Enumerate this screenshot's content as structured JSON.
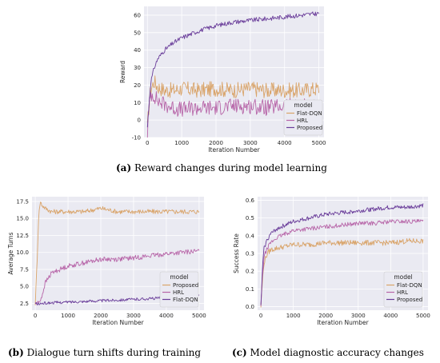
{
  "captions": [
    {
      "label": "(a)",
      "text": " Reward changes during model learning"
    },
    {
      "label": "(b)",
      "text": " Dialogue turn shifts during training"
    },
    {
      "label": "(c)",
      "text": " Model diagnostic accuracy changes"
    }
  ],
  "chart_data": [
    {
      "type": "line",
      "title": "",
      "xlabel": "Iteration Number",
      "ylabel": "Reward",
      "xlim": [
        -100,
        5150
      ],
      "ylim": [
        -10,
        65
      ],
      "xticks": [
        0,
        1000,
        2000,
        3000,
        4000,
        5000
      ],
      "yticks": [
        -10,
        0,
        10,
        20,
        30,
        40,
        50,
        60
      ],
      "grid": true,
      "legend_title": "model",
      "legend_position": "lower-right",
      "series": [
        {
          "name": "Flat-DQN",
          "color": "#d9a46a",
          "x": [
            0,
            50,
            100,
            200,
            300,
            500,
            750,
            1000,
            1500,
            2000,
            2500,
            3000,
            3500,
            4000,
            4500,
            5000
          ],
          "y": [
            -5,
            10,
            18,
            22,
            19,
            17,
            17,
            18,
            17,
            18,
            17,
            18,
            17,
            17,
            17,
            18
          ]
        },
        {
          "name": "HRL",
          "color": "#b765a8",
          "x": [
            0,
            50,
            100,
            200,
            300,
            500,
            750,
            1000,
            1500,
            2000,
            2500,
            3000,
            3500,
            4000,
            4500,
            5000
          ],
          "y": [
            -7,
            8,
            15,
            14,
            11,
            9,
            7,
            6,
            7,
            7,
            8,
            8,
            7,
            8,
            8,
            8
          ]
        },
        {
          "name": "Proposed",
          "color": "#6a3d9a",
          "x": [
            0,
            50,
            100,
            200,
            300,
            500,
            750,
            1000,
            1500,
            2000,
            2500,
            3000,
            3500,
            4000,
            4500,
            5000
          ],
          "y": [
            -4,
            10,
            22,
            30,
            35,
            40,
            44,
            47,
            51,
            54,
            56,
            57,
            58,
            59,
            60,
            61
          ]
        }
      ]
    },
    {
      "type": "line",
      "title": "",
      "xlabel": "Iteration Number",
      "ylabel": "Average Turns",
      "xlim": [
        -100,
        5150
      ],
      "ylim": [
        1.5,
        18.2
      ],
      "xticks": [
        0,
        1000,
        2000,
        3000,
        4000,
        5000
      ],
      "yticks": [
        2.5,
        5.0,
        7.5,
        10.0,
        12.5,
        15.0,
        17.5
      ],
      "grid": true,
      "legend_title": "model",
      "legend_position": "lower-right",
      "series": [
        {
          "name": "Proposed",
          "color": "#d9a46a",
          "x": [
            0,
            50,
            100,
            150,
            200,
            300,
            500,
            1000,
            1500,
            2000,
            2500,
            3000,
            3500,
            4000,
            4500,
            5000
          ],
          "y": [
            2.5,
            8,
            15,
            17.5,
            17,
            16.5,
            16,
            16,
            16,
            16.5,
            16,
            16,
            16,
            16,
            16,
            16
          ]
        },
        {
          "name": "HRL",
          "color": "#b765a8",
          "x": [
            0,
            100,
            200,
            300,
            500,
            750,
            1000,
            1500,
            2000,
            2500,
            3000,
            3500,
            4000,
            4500,
            5000
          ],
          "y": [
            2.5,
            2.6,
            3.5,
            5.5,
            7.0,
            7.5,
            8.0,
            8.5,
            9.0,
            9.0,
            9.2,
            9.5,
            9.8,
            10.0,
            10.2
          ]
        },
        {
          "name": "Flat-DQN",
          "color": "#6a3d9a",
          "x": [
            0,
            100,
            200,
            500,
            1000,
            1500,
            2000,
            2500,
            3000,
            3500,
            4000,
            4500,
            5000
          ],
          "y": [
            2.5,
            2.4,
            2.5,
            2.6,
            2.7,
            2.8,
            2.9,
            3.0,
            3.1,
            3.2,
            3.4,
            3.5,
            3.7
          ]
        }
      ]
    },
    {
      "type": "line",
      "title": "",
      "xlabel": "Iteration Number",
      "ylabel": "Success Rate",
      "xlim": [
        -100,
        5150
      ],
      "ylim": [
        -0.02,
        0.62
      ],
      "xticks": [
        0,
        1000,
        2000,
        3000,
        4000,
        5000
      ],
      "yticks": [
        0.0,
        0.1,
        0.2,
        0.3,
        0.4,
        0.5,
        0.6
      ],
      "grid": true,
      "legend_title": "model",
      "legend_position": "lower-right",
      "series": [
        {
          "name": "Flat-DQN",
          "color": "#d9a46a",
          "x": [
            0,
            50,
            100,
            200,
            300,
            500,
            1000,
            1500,
            2000,
            2500,
            3000,
            3500,
            4000,
            4500,
            5000
          ],
          "y": [
            0.0,
            0.15,
            0.25,
            0.3,
            0.32,
            0.33,
            0.35,
            0.35,
            0.36,
            0.36,
            0.36,
            0.36,
            0.36,
            0.37,
            0.37
          ]
        },
        {
          "name": "HRL",
          "color": "#b765a8",
          "x": [
            0,
            50,
            100,
            200,
            300,
            500,
            1000,
            1500,
            2000,
            2500,
            3000,
            3500,
            4000,
            4500,
            5000
          ],
          "y": [
            0.0,
            0.18,
            0.28,
            0.33,
            0.36,
            0.39,
            0.43,
            0.44,
            0.45,
            0.46,
            0.47,
            0.47,
            0.48,
            0.48,
            0.48
          ]
        },
        {
          "name": "Proposed",
          "color": "#6a3d9a",
          "x": [
            0,
            50,
            100,
            200,
            300,
            500,
            1000,
            1500,
            2000,
            2500,
            3000,
            3500,
            4000,
            4500,
            5000
          ],
          "y": [
            0.0,
            0.22,
            0.33,
            0.38,
            0.41,
            0.44,
            0.48,
            0.5,
            0.52,
            0.53,
            0.54,
            0.55,
            0.56,
            0.56,
            0.57
          ]
        }
      ]
    }
  ]
}
